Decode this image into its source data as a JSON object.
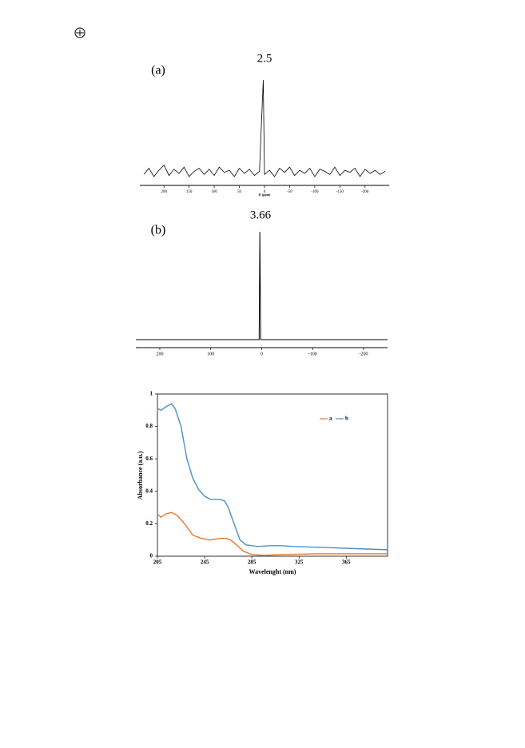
{
  "chart_data": [
    {
      "type": "line",
      "title": "(a)",
      "annotation": "2.5",
      "x_label": "f1 (ppm)",
      "color": "#000000",
      "x": [
        240,
        230,
        220,
        210,
        200,
        190,
        180,
        170,
        160,
        150,
        140,
        130,
        120,
        110,
        100,
        90,
        80,
        70,
        60,
        50,
        40,
        30,
        20,
        10,
        2.5,
        0,
        -10,
        -20,
        -30,
        -40,
        -50,
        -60,
        -70,
        -80,
        -90,
        -100,
        -110,
        -120,
        -130,
        -140,
        -150,
        -160,
        -170,
        -180,
        -190,
        -200,
        -210,
        -220,
        -230,
        -240
      ],
      "values": [
        9,
        15,
        7,
        13,
        18,
        8,
        14,
        10,
        16,
        7,
        12,
        15,
        9,
        14,
        8,
        16,
        11,
        13,
        7,
        15,
        10,
        14,
        8,
        12,
        100,
        9,
        13,
        7,
        15,
        11,
        16,
        8,
        13,
        10,
        15,
        7,
        14,
        12,
        9,
        16,
        8,
        13,
        11,
        15,
        7,
        14,
        10,
        13,
        9,
        12
      ],
      "xlim": [
        248,
        -248
      ],
      "ylim": [
        0,
        100
      ],
      "xticks": [
        200,
        150,
        100,
        50,
        0,
        -50,
        -100,
        -150,
        -200
      ]
    },
    {
      "type": "line",
      "title": "(b)",
      "annotation": "3.66",
      "color": "#000000",
      "x": [
        247,
        5,
        3.66,
        2,
        -247
      ],
      "values": [
        0,
        0,
        100,
        0,
        0
      ],
      "xlim": [
        247,
        -247
      ],
      "ylim": [
        0,
        100
      ],
      "xticks": [
        200,
        100,
        0,
        -100,
        -200
      ]
    },
    {
      "type": "line",
      "x_label": "Wavelenght (nm)",
      "y_label": "Absorbance (a.u.)",
      "xlim": [
        205,
        400
      ],
      "ylim": [
        0,
        1
      ],
      "xticks": [
        205,
        245,
        285,
        325,
        365
      ],
      "yticks": [
        0,
        0.2,
        0.4,
        0.6,
        0.8,
        1
      ],
      "legend": "upper right",
      "series": [
        {
          "name": "a",
          "color": "#e8742a",
          "x": [
            205,
            208,
            212,
            217,
            222,
            228,
            235,
            242,
            250,
            258,
            263,
            267,
            272,
            278,
            285,
            295,
            310,
            340,
            370,
            400
          ],
          "values": [
            0.26,
            0.24,
            0.26,
            0.27,
            0.25,
            0.2,
            0.13,
            0.11,
            0.1,
            0.11,
            0.11,
            0.1,
            0.07,
            0.03,
            0.01,
            0.005,
            0.01,
            0.015,
            0.015,
            0.015
          ]
        },
        {
          "name": "b",
          "color": "#4a90c8",
          "x": [
            205,
            208,
            212,
            217,
            220,
            225,
            230,
            235,
            240,
            245,
            250,
            255,
            258,
            262,
            265,
            270,
            275,
            280,
            290,
            300,
            310,
            320,
            340,
            360,
            380,
            400
          ],
          "values": [
            0.91,
            0.9,
            0.92,
            0.94,
            0.91,
            0.8,
            0.6,
            0.48,
            0.41,
            0.37,
            0.35,
            0.35,
            0.35,
            0.34,
            0.3,
            0.2,
            0.1,
            0.07,
            0.06,
            0.065,
            0.065,
            0.06,
            0.055,
            0.05,
            0.045,
            0.04
          ]
        }
      ]
    }
  ]
}
